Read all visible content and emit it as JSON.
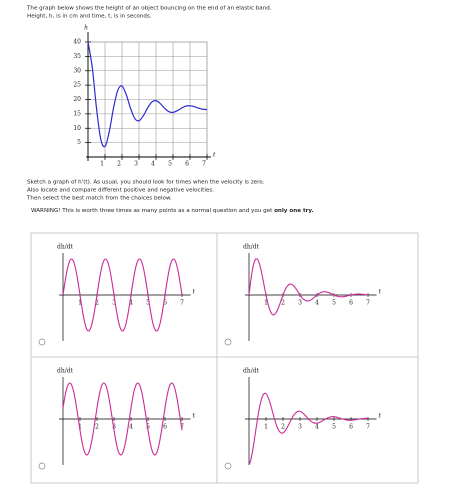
{
  "question": {
    "intro": [
      "The graph below shows the height of an object bouncing on the end of an elastic band.",
      "Height, h, is in cm and time, t, is in seconds."
    ],
    "instructions": [
      "Sketch a graph of h'(t).  As usual, you should look for times when the velocity is zero.",
      "Also locate and compare different positive and negative velocities.",
      "Then select the best match from the choices below."
    ],
    "warning": "WARNING! This is worth three times as many points as a normal question and you get",
    "warning_bold": "only one try."
  },
  "chart_data": {
    "type": "line",
    "y_label": "h",
    "x_label": "t",
    "x": [
      0,
      0.25,
      0.5,
      0.75,
      1,
      1.25,
      1.5,
      1.75,
      2,
      2.25,
      2.5,
      2.75,
      3,
      3.25,
      3.5,
      3.75,
      4,
      4.25,
      4.5,
      4.75,
      5,
      5.25,
      5.5,
      5.75,
      6,
      6.25,
      6.5,
      6.75,
      7
    ],
    "values": [
      40,
      31.2,
      17,
      6.2,
      3.7,
      8.8,
      17,
      23.2,
      24.7,
      21.7,
      17,
      13.4,
      12.6,
      14.3,
      17,
      19.1,
      19.6,
      18.6,
      17,
      15.8,
      15.5,
      16.1,
      17,
      17.7,
      17.8,
      17.5,
      17,
      16.6,
      16.5
    ],
    "color": "#2b2bd0",
    "xlim": [
      0,
      7
    ],
    "ylim": [
      0,
      40
    ],
    "xticks": [
      1,
      2,
      3,
      4,
      5,
      6,
      7
    ],
    "yticks": [
      5,
      10,
      15,
      20,
      25,
      30,
      35,
      40
    ],
    "grid": true
  },
  "options": [
    {
      "y_label": "dh/dt",
      "x_label": "t",
      "ticks": [
        1,
        2,
        3,
        4,
        5,
        6,
        7
      ]
    },
    {
      "y_label": "dh/dt",
      "x_label": "t",
      "ticks": [
        1,
        2,
        3,
        4,
        5,
        6,
        7
      ]
    },
    {
      "y_label": "dh/dt",
      "x_label": "t",
      "ticks": [
        1,
        2,
        3,
        4,
        5,
        6,
        7
      ]
    },
    {
      "y_label": "dh/dt",
      "x_label": "t",
      "ticks": [
        1,
        2,
        3,
        4,
        5,
        6,
        7
      ]
    }
  ]
}
